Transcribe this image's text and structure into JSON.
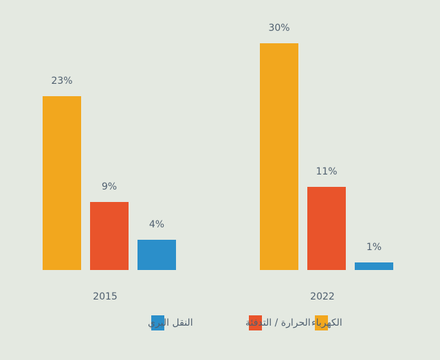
{
  "chart_data": {
    "type": "bar",
    "categories": [
      "2015",
      "2022"
    ],
    "series": [
      {
        "name": "الكهرباء",
        "color": "#f2a71e",
        "values": [
          23,
          30
        ],
        "value_labels": [
          "23%",
          "30%"
        ]
      },
      {
        "name": "الحرارة / التدفئة",
        "color": "#e9542b",
        "values": [
          9,
          11
        ],
        "value_labels": [
          "9%",
          "11%"
        ]
      },
      {
        "name": "النقل البري",
        "color": "#2b8fca",
        "values": [
          4,
          1
        ],
        "value_labels": [
          "4%",
          "1%"
        ]
      }
    ]
  }
}
